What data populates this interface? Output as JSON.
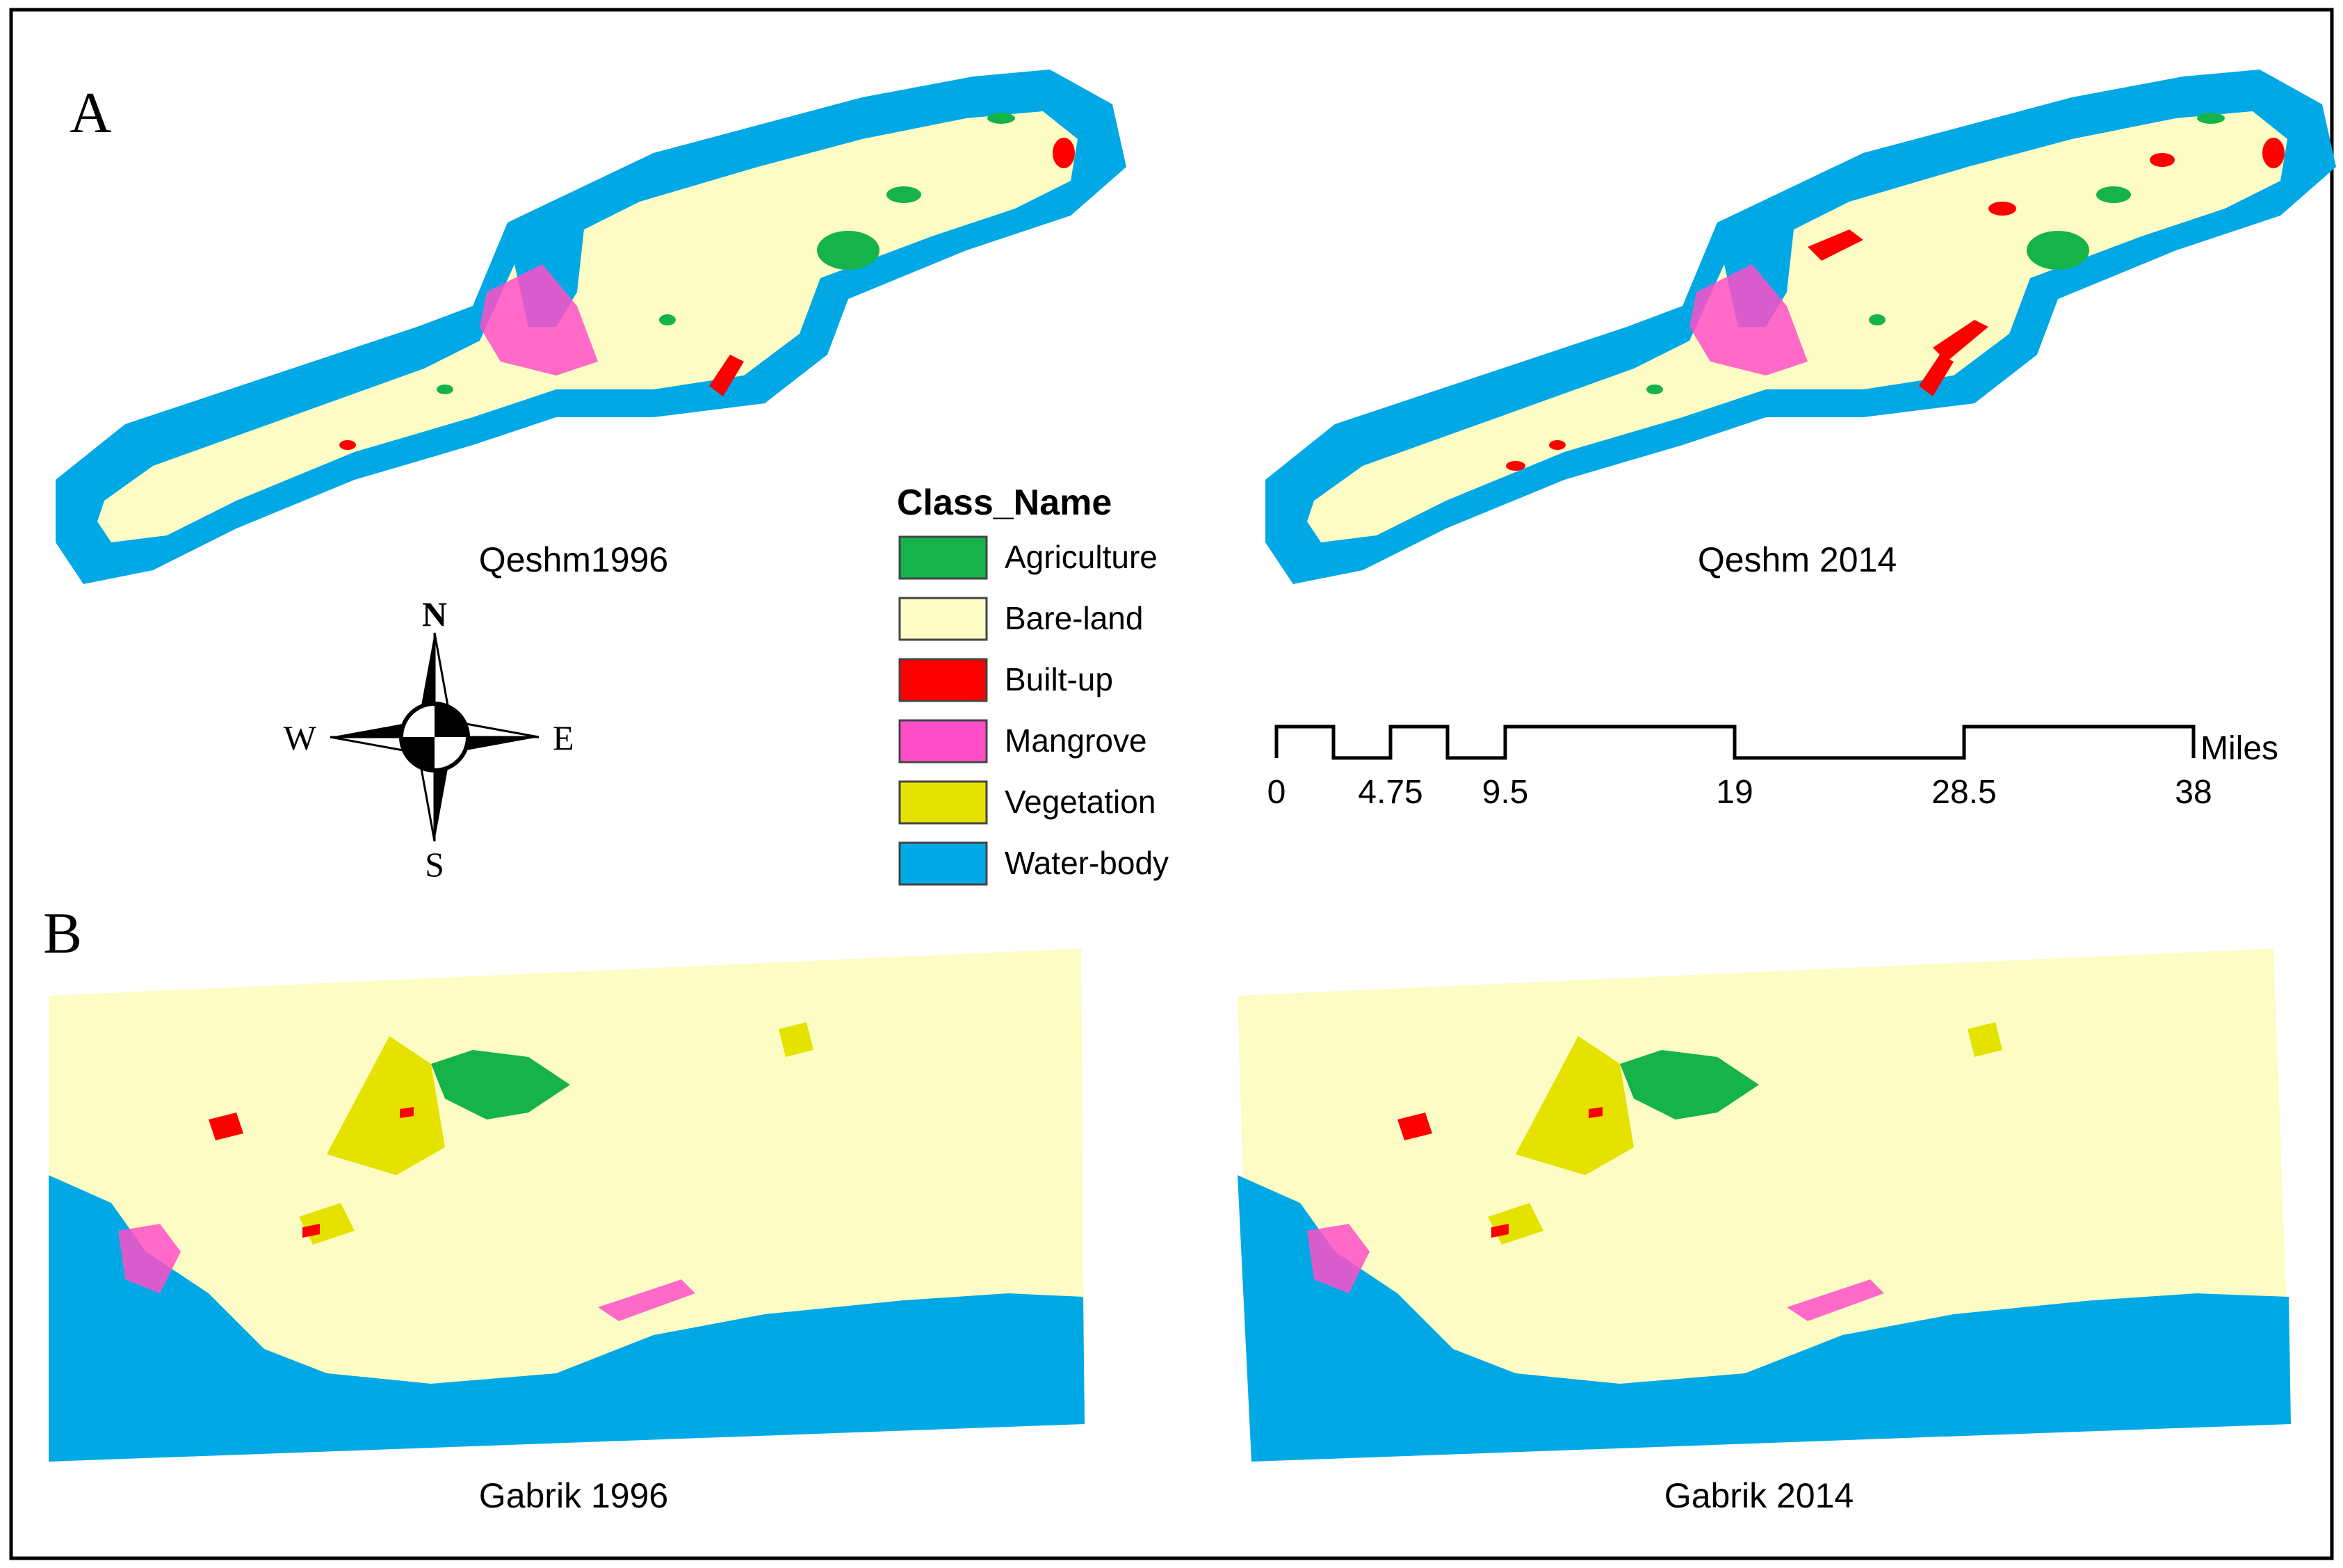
{
  "panels": {
    "a_letter": "A",
    "b_letter": "B"
  },
  "maps": {
    "qeshm_1996": "Qeshm1996",
    "qeshm_2014": "Qeshm 2014",
    "gabrik_1996": "Gabrik 1996",
    "gabrik_2014": "Gabrik 2014"
  },
  "legend": {
    "title": "Class_Name",
    "items": [
      {
        "label": "Agriculture",
        "color": "#15b34a"
      },
      {
        "label": "Bare-land",
        "color": "#fdfcc4"
      },
      {
        "label": "Built-up",
        "color": "#ff0000"
      },
      {
        "label": "Mangrove",
        "color": "#ff4fc8"
      },
      {
        "label": "Vegetation",
        "color": "#e5e200"
      },
      {
        "label": "Water-body",
        "color": "#00a8e6"
      }
    ]
  },
  "compass": {
    "n": "N",
    "s": "S",
    "e": "E",
    "w": "W"
  },
  "scale_bar": {
    "unit": "Miles",
    "ticks": [
      "0",
      "4.75",
      "9.5",
      "19",
      "28.5",
      "38"
    ]
  },
  "colors": {
    "water": "#00a8e6",
    "bare": "#fdfcc4",
    "agriculture": "#15b34a",
    "builtup": "#ff0000",
    "mangrove": "#ff4fc8",
    "vegetation": "#e5e200"
  }
}
